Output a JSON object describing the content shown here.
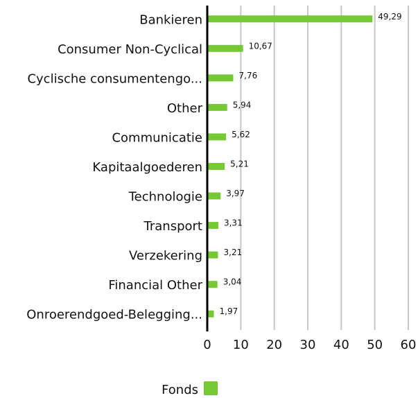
{
  "chart_data": {
    "type": "bar",
    "orientation": "horizontal",
    "categories": [
      "Bankieren",
      "Consumer Non-Cyclical",
      "Cyclische consumentengo...",
      "Other",
      "Communicatie",
      "Kapitaalgoederen",
      "Technologie",
      "Transport",
      "Verzekering",
      "Financial Other",
      "Onroerendgoed-Belegging..."
    ],
    "series": [
      {
        "name": "Fonds",
        "color": "#76c935",
        "values": [
          49.29,
          10.67,
          7.76,
          5.94,
          5.62,
          5.21,
          3.97,
          3.31,
          3.21,
          3.04,
          1.97
        ],
        "value_labels": [
          "49,29",
          "10,67",
          "7,76",
          "5,94",
          "5,62",
          "5,21",
          "3,97",
          "3,31",
          "3,21",
          "3,04",
          "1,97"
        ]
      }
    ],
    "xlim": [
      0,
      60
    ],
    "xticks": [
      0,
      10,
      20,
      30,
      40,
      50,
      60
    ],
    "grid": true,
    "legend": "bottom"
  }
}
